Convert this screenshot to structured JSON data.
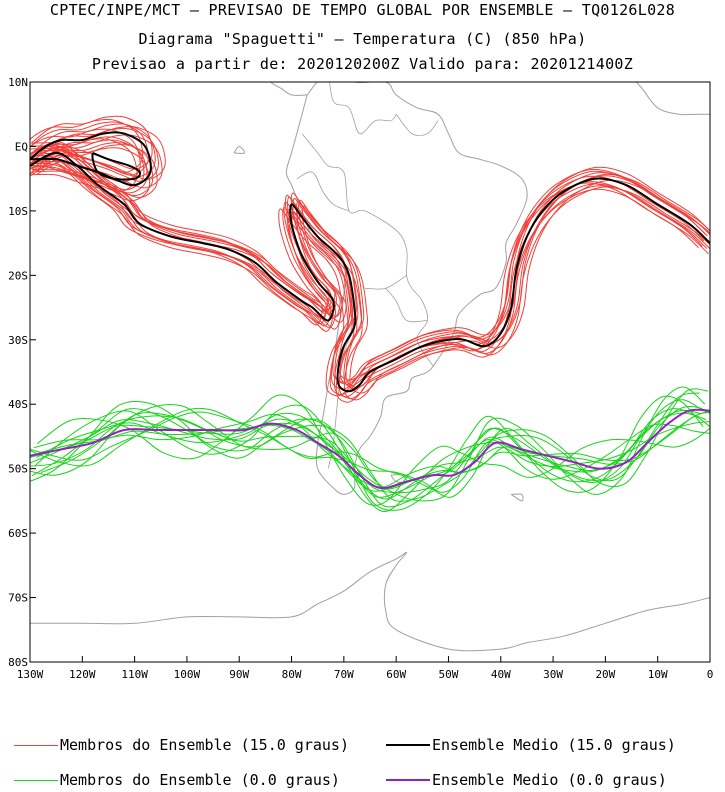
{
  "header": {
    "line1": "CPTEC/INPE/MCT — PREVISAO DE TEMPO GLOBAL POR ENSEMBLE — TQ0126L028",
    "line2": "Diagrama \"Spaguetti\" — Temperatura (C) (850 hPa)",
    "line3": "Previsao a partir de: 2020120200Z  Valido para: 2020121400Z"
  },
  "axes": {
    "lat_labels": [
      "10N",
      "EQ",
      "10S",
      "20S",
      "30S",
      "40S",
      "50S",
      "60S",
      "70S",
      "80S"
    ],
    "lat_values": [
      10,
      0,
      -10,
      -20,
      -30,
      -40,
      -50,
      -60,
      -70,
      -80
    ],
    "lon_labels": [
      "130W",
      "120W",
      "110W",
      "100W",
      "90W",
      "80W",
      "70W",
      "60W",
      "50W",
      "40W",
      "30W",
      "20W",
      "10W",
      "0"
    ],
    "lon_values": [
      -130,
      -120,
      -110,
      -100,
      -90,
      -80,
      -70,
      -60,
      -50,
      -40,
      -30,
      -20,
      -10,
      0
    ],
    "extent": {
      "lon_min": -130,
      "lon_max": 0,
      "lat_min": -80,
      "lat_max": 10
    }
  },
  "colors": {
    "member15": "#f0403a",
    "mean15": "#000000",
    "member0": "#19d419",
    "mean0": "#9a1ec8",
    "coast": "#a0a0a0"
  },
  "legend": {
    "member15": "Membros do Ensemble (15.0 graus)",
    "mean15": "Ensemble Medio (15.0 graus)",
    "member0": "Membros do Ensemble (0.0 graus)",
    "mean0": "Ensemble Medio (0.0 graus)"
  },
  "contours": {
    "mean15_main": [
      [
        -130,
        -3
      ],
      [
        -125,
        -1
      ],
      [
        -121,
        -3
      ],
      [
        -117,
        -6
      ],
      [
        -112,
        -9
      ],
      [
        -109,
        -12
      ],
      [
        -103,
        -14
      ],
      [
        -97,
        -15
      ],
      [
        -92,
        -16
      ],
      [
        -87,
        -18
      ],
      [
        -83,
        -21
      ],
      [
        -78,
        -24
      ],
      [
        -76,
        -25
      ],
      [
        -73,
        -27
      ],
      [
        -72,
        -24
      ],
      [
        -75,
        -21
      ],
      [
        -78,
        -17
      ],
      [
        -80,
        -12
      ],
      [
        -80,
        -9
      ],
      [
        -78,
        -11
      ],
      [
        -75,
        -14
      ],
      [
        -71,
        -17
      ],
      [
        -69,
        -20
      ],
      [
        -68,
        -25
      ],
      [
        -68,
        -28
      ],
      [
        -70,
        -31
      ],
      [
        -71,
        -34
      ],
      [
        -71,
        -37
      ],
      [
        -69,
        -38
      ],
      [
        -67,
        -37
      ],
      [
        -65,
        -35
      ],
      [
        -60,
        -33
      ],
      [
        -55,
        -31
      ],
      [
        -50,
        -30
      ],
      [
        -47,
        -30
      ],
      [
        -43,
        -31
      ],
      [
        -40,
        -29
      ],
      [
        -38,
        -25
      ],
      [
        -37,
        -19
      ],
      [
        -35,
        -14
      ],
      [
        -32,
        -10
      ],
      [
        -28,
        -7
      ],
      [
        -22,
        -5
      ],
      [
        -16,
        -6
      ],
      [
        -10,
        -9
      ],
      [
        -4,
        -12
      ],
      [
        0,
        -15
      ]
    ],
    "mean15_north": [
      [
        -130,
        -2
      ],
      [
        -127,
        0
      ],
      [
        -124,
        1
      ],
      [
        -120,
        1
      ],
      [
        -116,
        2
      ],
      [
        -112,
        2
      ],
      [
        -108,
        0
      ],
      [
        -107,
        -4
      ],
      [
        -110,
        -6
      ],
      [
        -114,
        -5
      ],
      [
        -117,
        -4
      ],
      [
        -121,
        -3
      ],
      [
        -125,
        -2
      ],
      [
        -130,
        -2
      ]
    ],
    "mean15_inner": [
      [
        -118,
        -1
      ],
      [
        -115,
        -2
      ],
      [
        -111,
        -3
      ],
      [
        -109,
        -4
      ],
      [
        -110,
        -5
      ],
      [
        -114,
        -5
      ],
      [
        -117,
        -4
      ],
      [
        -118,
        -2
      ],
      [
        -118,
        -1
      ]
    ],
    "mean0": [
      [
        -130,
        -48
      ],
      [
        -124,
        -47
      ],
      [
        -118,
        -46
      ],
      [
        -112,
        -44
      ],
      [
        -106,
        -44
      ],
      [
        -100,
        -44
      ],
      [
        -95,
        -44
      ],
      [
        -89,
        -44
      ],
      [
        -84,
        -43
      ],
      [
        -79,
        -44
      ],
      [
        -75,
        -46
      ],
      [
        -71,
        -48
      ],
      [
        -67,
        -51
      ],
      [
        -63,
        -53
      ],
      [
        -58,
        -52
      ],
      [
        -53,
        -51
      ],
      [
        -49,
        -51
      ],
      [
        -45,
        -49
      ],
      [
        -41,
        -46
      ],
      [
        -36,
        -47
      ],
      [
        -31,
        -48
      ],
      [
        -26,
        -49
      ],
      [
        -21,
        -50
      ],
      [
        -16,
        -49
      ],
      [
        -12,
        -46
      ],
      [
        -8,
        -43
      ],
      [
        -4,
        -41
      ],
      [
        0,
        -41
      ]
    ],
    "member15_offsets": [
      [
        0,
        0
      ],
      [
        1.2,
        0.6
      ],
      [
        -1.1,
        -0.7
      ],
      [
        0.7,
        1.3
      ],
      [
        -0.6,
        -1.2
      ],
      [
        1.8,
        -0.4
      ],
      [
        -1.7,
        0.5
      ],
      [
        0.3,
        -1.6
      ],
      [
        -0.4,
        1.6
      ],
      [
        2.3,
        0.9
      ],
      [
        -2.2,
        -1.0
      ],
      [
        1.0,
        -1.9
      ],
      [
        -1.3,
        2.0
      ],
      [
        0.2,
        2.5
      ],
      [
        -0.2,
        -2.4
      ]
    ],
    "member0_offsets": [
      [
        0,
        0
      ],
      [
        1.5,
        1.5
      ],
      [
        -1.5,
        -1.5
      ],
      [
        2.5,
        -2.0
      ],
      [
        -2.5,
        2.2
      ],
      [
        0.8,
        3.2
      ],
      [
        -0.8,
        -3.4
      ],
      [
        3.5,
        0.7
      ],
      [
        -3.2,
        -0.6
      ],
      [
        1.9,
        -3.8
      ],
      [
        -2.0,
        4.0
      ],
      [
        4.2,
        2.6
      ],
      [
        -4.0,
        -2.8
      ],
      [
        2.8,
        4.5
      ],
      [
        -2.6,
        -4.4
      ]
    ]
  },
  "coastlines": {
    "south_america": [
      [
        -77,
        8
      ],
      [
        -74,
        11
      ],
      [
        -71,
        12
      ],
      [
        -68,
        10
      ],
      [
        -62,
        10
      ],
      [
        -60,
        8
      ],
      [
        -56,
        6
      ],
      [
        -52,
        5
      ],
      [
        -50,
        2
      ],
      [
        -48,
        -1
      ],
      [
        -44,
        -2
      ],
      [
        -40,
        -3
      ],
      [
        -36,
        -5
      ],
      [
        -35,
        -8
      ],
      [
        -37,
        -12
      ],
      [
        -39,
        -15
      ],
      [
        -39,
        -18
      ],
      [
        -41,
        -22
      ],
      [
        -44,
        -23
      ],
      [
        -48,
        -26
      ],
      [
        -49,
        -29
      ],
      [
        -52,
        -33
      ],
      [
        -54,
        -35
      ],
      [
        -57,
        -36
      ],
      [
        -58,
        -38
      ],
      [
        -62,
        -39
      ],
      [
        -63,
        -42
      ],
      [
        -65,
        -45
      ],
      [
        -67,
        -47
      ],
      [
        -68,
        -50
      ],
      [
        -68,
        -53
      ],
      [
        -70,
        -54
      ],
      [
        -72,
        -53
      ],
      [
        -75,
        -50
      ],
      [
        -75,
        -46
      ],
      [
        -74,
        -42
      ],
      [
        -73,
        -37
      ],
      [
        -72,
        -33
      ],
      [
        -71,
        -28
      ],
      [
        -70,
        -23
      ],
      [
        -70,
        -18
      ],
      [
        -73,
        -16
      ],
      [
        -76,
        -14
      ],
      [
        -78,
        -10
      ],
      [
        -80,
        -6
      ],
      [
        -81,
        -4
      ],
      [
        -80,
        -1
      ],
      [
        -79,
        2
      ],
      [
        -78,
        5
      ],
      [
        -77,
        8
      ]
    ],
    "central_america": [
      [
        -77,
        8
      ],
      [
        -80,
        8
      ],
      [
        -82,
        9
      ],
      [
        -84,
        10
      ],
      [
        -86,
        12
      ],
      [
        -88,
        13
      ],
      [
        -89,
        14
      ],
      [
        -91,
        14
      ]
    ],
    "africa": [
      [
        -17,
        15
      ],
      [
        -16,
        12
      ],
      [
        -13,
        9
      ],
      [
        -10,
        6
      ],
      [
        -6,
        5
      ],
      [
        -2,
        5
      ],
      [
        0,
        5
      ]
    ],
    "antarctica": [
      [
        -130,
        -74
      ],
      [
        -120,
        -74
      ],
      [
        -110,
        -74
      ],
      [
        -100,
        -73
      ],
      [
        -90,
        -73
      ],
      [
        -80,
        -73
      ],
      [
        -75,
        -71
      ],
      [
        -70,
        -69
      ],
      [
        -65,
        -66
      ],
      [
        -60,
        -64
      ],
      [
        -58,
        -63
      ],
      [
        -60,
        -65
      ],
      [
        -62,
        -68
      ],
      [
        -62,
        -72
      ],
      [
        -60,
        -75
      ],
      [
        -50,
        -78
      ],
      [
        -40,
        -78
      ],
      [
        -35,
        -77
      ],
      [
        -28,
        -76
      ],
      [
        -20,
        -74
      ],
      [
        -12,
        -72
      ],
      [
        -5,
        -71
      ],
      [
        0,
        -70
      ]
    ],
    "islands": [
      [
        [
          -61,
          -51
        ],
        [
          -59,
          -51
        ],
        [
          -58,
          -52
        ],
        [
          -60,
          -52
        ],
        [
          -61,
          -51
        ]
      ],
      [
        [
          -38,
          -54
        ],
        [
          -36,
          -54
        ],
        [
          -36,
          -55
        ],
        [
          -38,
          -54
        ]
      ],
      [
        [
          -91,
          -1
        ],
        [
          -90,
          0
        ],
        [
          -89,
          -1
        ],
        [
          -91,
          -1
        ]
      ]
    ]
  },
  "borders": [
    [
      [
        -78,
        2
      ],
      [
        -75,
        -1
      ],
      [
        -73,
        -3
      ],
      [
        -70,
        -4
      ],
      [
        -69,
        -10
      ],
      [
        -66,
        -10
      ],
      [
        -60,
        -13
      ],
      [
        -58,
        -16
      ],
      [
        -58,
        -20
      ],
      [
        -57,
        -22
      ],
      [
        -55,
        -24
      ],
      [
        -54,
        -27
      ],
      [
        -56,
        -30
      ],
      [
        -53,
        -34
      ]
    ],
    [
      [
        -70,
        -18
      ],
      [
        -69,
        -22
      ],
      [
        -68,
        -24
      ],
      [
        -68,
        -28
      ],
      [
        -70,
        -32
      ],
      [
        -71,
        -38
      ],
      [
        -72,
        -46
      ],
      [
        -73,
        -50
      ]
    ],
    [
      [
        -66,
        -22
      ],
      [
        -62,
        -22
      ],
      [
        -58,
        -20
      ]
    ],
    [
      [
        -62,
        -22
      ],
      [
        -60,
        -24
      ],
      [
        -58,
        -27
      ],
      [
        -54,
        -27
      ]
    ],
    [
      [
        -73,
        12
      ],
      [
        -72,
        7
      ],
      [
        -69,
        6
      ],
      [
        -67,
        2
      ],
      [
        -64,
        4
      ],
      [
        -61,
        4
      ],
      [
        -60,
        5
      ]
    ],
    [
      [
        -60,
        5
      ],
      [
        -57,
        2
      ],
      [
        -54,
        2
      ],
      [
        -52,
        4
      ]
    ],
    [
      [
        -69,
        -10
      ],
      [
        -72,
        -9
      ],
      [
        -74,
        -7
      ],
      [
        -76,
        -4
      ],
      [
        -79,
        -5
      ]
    ]
  ]
}
